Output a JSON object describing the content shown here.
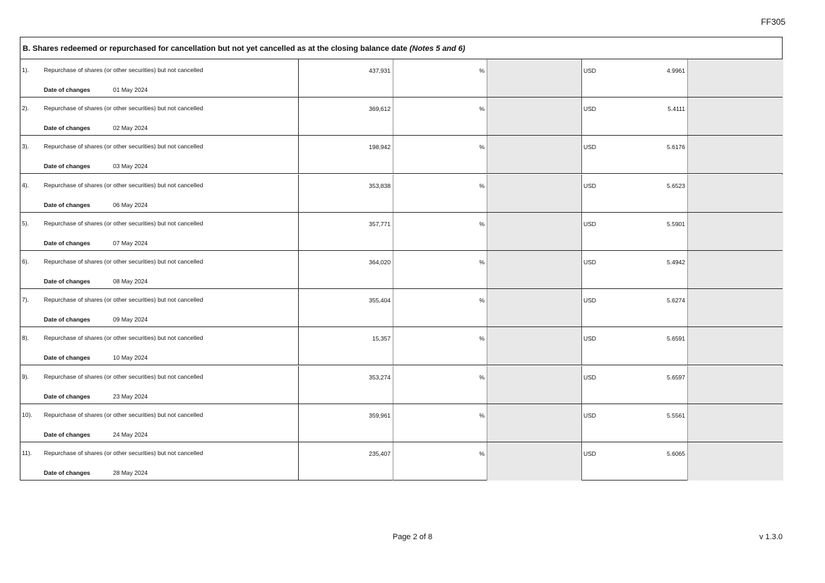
{
  "form_code": "FF305",
  "section": {
    "title": "B. Shares redeemed or repurchased for cancellation but not yet cancelled as at the closing balance date",
    "title_note": "(Notes 5 and 6)"
  },
  "date_label": "Date of changes",
  "percent_symbol": "%",
  "rows": [
    {
      "index": "1).",
      "description": "Repurchase of shares (or other securities) but not cancelled",
      "date": "01 May 2024",
      "shares": "437,931",
      "currency": "USD",
      "price": "4.9961"
    },
    {
      "index": "2).",
      "description": "Repurchase of shares (or other securities) but not cancelled",
      "date": "02 May 2024",
      "shares": "369,612",
      "currency": "USD",
      "price": "5.4111"
    },
    {
      "index": "3).",
      "description": "Repurchase of shares (or other securities) but not cancelled",
      "date": "03 May 2024",
      "shares": "198,942",
      "currency": "USD",
      "price": "5.6176"
    },
    {
      "index": "4).",
      "description": "Repurchase of shares (or other securities) but not cancelled",
      "date": "06 May 2024",
      "shares": "353,838",
      "currency": "USD",
      "price": "5.6523"
    },
    {
      "index": "5).",
      "description": "Repurchase of shares (or other securities) but not cancelled",
      "date": "07 May 2024",
      "shares": "357,771",
      "currency": "USD",
      "price": "5.5901"
    },
    {
      "index": "6).",
      "description": "Repurchase of shares (or other securities) but not cancelled",
      "date": "08 May 2024",
      "shares": "364,020",
      "currency": "USD",
      "price": "5.4942"
    },
    {
      "index": "7).",
      "description": "Repurchase of shares (or other securities) but not cancelled",
      "date": "09 May 2024",
      "shares": "355,404",
      "currency": "USD",
      "price": "5.6274"
    },
    {
      "index": "8).",
      "description": "Repurchase of shares (or other securities) but not cancelled",
      "date": "10 May 2024",
      "shares": "15,357",
      "currency": "USD",
      "price": "5.6591"
    },
    {
      "index": "9).",
      "description": "Repurchase of shares (or other securities) but not cancelled",
      "date": "23 May 2024",
      "shares": "353,274",
      "currency": "USD",
      "price": "5.6597"
    },
    {
      "index": "10).",
      "description": "Repurchase of shares (or other securities) but not cancelled",
      "date": "24 May 2024",
      "shares": "359,961",
      "currency": "USD",
      "price": "5.5561"
    },
    {
      "index": "11).",
      "description": "Repurchase of shares (or other securities) but not cancelled",
      "date": "28 May 2024",
      "shares": "235,407",
      "currency": "USD",
      "price": "5.6065"
    }
  ],
  "footer": {
    "page": "Page 2 of 8",
    "version": "v 1.3.0"
  }
}
